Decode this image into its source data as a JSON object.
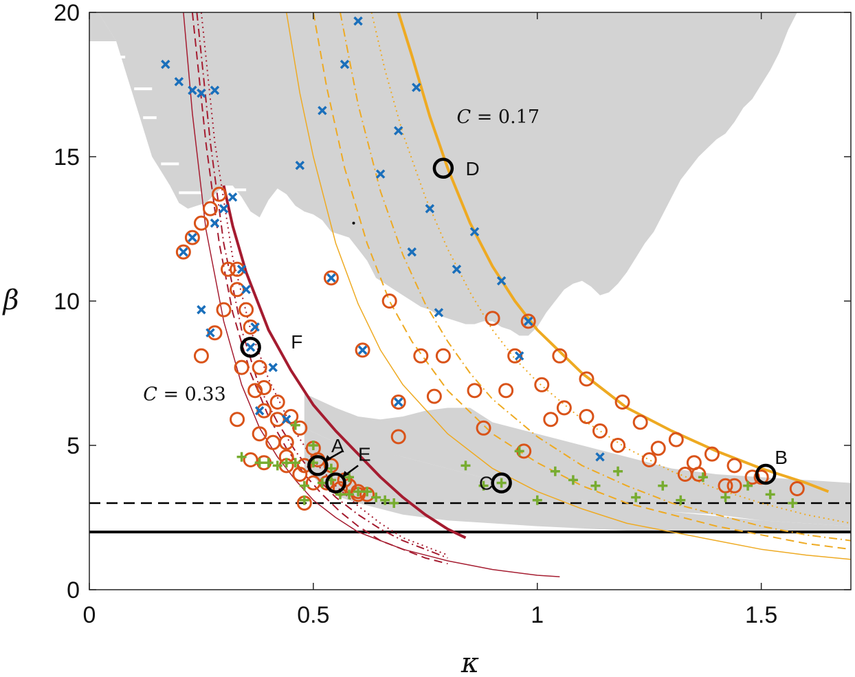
{
  "chart_data": {
    "type": "scatter",
    "title": "",
    "xlabel": "κ",
    "ylabel": "β",
    "xlim": [
      0,
      1.7
    ],
    "ylim": [
      0,
      20
    ],
    "xticks": [
      0,
      0.5,
      1,
      1.5
    ],
    "xtick_labels": [
      "0",
      "0.5",
      "1",
      "1.5"
    ],
    "yticks": [
      0,
      5,
      10,
      15,
      20
    ],
    "ytick_labels": [
      "0",
      "5",
      "10",
      "15",
      "20"
    ],
    "colors": {
      "region": "#d3d3d3",
      "red_curves": "#a51c30",
      "gold_curves": "#eeaa22",
      "cross": "#1a6fbb",
      "circle": "#d95319",
      "plus": "#77ac30",
      "black": "#000000"
    },
    "horizontal_lines": [
      {
        "name": "solid-threshold",
        "y": 2,
        "style": "solid"
      },
      {
        "name": "dashed-threshold",
        "y": 3,
        "style": "dashed"
      }
    ],
    "grey_region": {
      "upper_left": [
        [
          0.02,
          20
        ],
        [
          0.04,
          19.5
        ],
        [
          0.06,
          19
        ],
        [
          0.08,
          18
        ],
        [
          0.1,
          17
        ],
        [
          0.12,
          16
        ],
        [
          0.14,
          15
        ],
        [
          0.16,
          14.5
        ],
        [
          0.18,
          14
        ],
        [
          0.2,
          13.4
        ],
        [
          0.22,
          13.2
        ],
        [
          0.24,
          13.3
        ],
        [
          0.26,
          13.4
        ],
        [
          0.28,
          13.7
        ],
        [
          0.3,
          14
        ],
        [
          0.32,
          14
        ],
        [
          0.34,
          13.6
        ],
        [
          0.36,
          13.1
        ],
        [
          0.38,
          12.9
        ],
        [
          0.4,
          13.5
        ],
        [
          0.42,
          13.9
        ],
        [
          0.44,
          13.7
        ],
        [
          0.46,
          13.3
        ],
        [
          0.48,
          13.1
        ],
        [
          0.5,
          13
        ],
        [
          0.52,
          12.8
        ],
        [
          0.54,
          12.4
        ],
        [
          0.56,
          12.3
        ],
        [
          0.58,
          12.2
        ],
        [
          0.6,
          11.8
        ],
        [
          0.62,
          11.4
        ],
        [
          0.64,
          10.8
        ],
        [
          0.66,
          10.6
        ],
        [
          0.68,
          10.4
        ],
        [
          0.7,
          10.2
        ],
        [
          0.72,
          10
        ],
        [
          0.74,
          9.8
        ],
        [
          0.76,
          9.7
        ],
        [
          0.78,
          9.5
        ],
        [
          0.8,
          9.4
        ],
        [
          0.82,
          9.3
        ],
        [
          0.84,
          9.2
        ],
        [
          0.86,
          9.2
        ],
        [
          0.88,
          9.3
        ],
        [
          0.9,
          9.3
        ],
        [
          0.92,
          9.1
        ],
        [
          0.94,
          9
        ],
        [
          0.96,
          8.8
        ],
        [
          0.98,
          8.8
        ],
        [
          1,
          9.1
        ],
        [
          1.02,
          9.6
        ],
        [
          1.04,
          10
        ],
        [
          1.06,
          10.4
        ],
        [
          1.08,
          10.6
        ],
        [
          1.1,
          10.7
        ],
        [
          1.12,
          10.5
        ],
        [
          1.14,
          10.2
        ],
        [
          1.16,
          10.3
        ],
        [
          1.18,
          10.6
        ],
        [
          1.2,
          11
        ],
        [
          1.22,
          11.5
        ],
        [
          1.24,
          12
        ],
        [
          1.26,
          12.4
        ],
        [
          1.28,
          13
        ],
        [
          1.3,
          13.6
        ],
        [
          1.32,
          14.2
        ],
        [
          1.34,
          14.6
        ],
        [
          1.36,
          15
        ],
        [
          1.38,
          15.3
        ],
        [
          1.4,
          15.6
        ],
        [
          1.42,
          15.8
        ],
        [
          1.44,
          16.2
        ],
        [
          1.46,
          16.7
        ],
        [
          1.48,
          17
        ],
        [
          1.5,
          17.5
        ],
        [
          1.52,
          18
        ],
        [
          1.54,
          18.6
        ],
        [
          1.56,
          19.4
        ],
        [
          1.58,
          20
        ]
      ],
      "lower_band_top": [
        [
          0.48,
          6.8
        ],
        [
          0.55,
          6.3
        ],
        [
          0.6,
          6
        ],
        [
          0.65,
          5.9
        ],
        [
          0.7,
          6
        ],
        [
          0.75,
          6.2
        ],
        [
          0.8,
          6.3
        ],
        [
          0.85,
          6.3
        ],
        [
          0.9,
          5.8
        ],
        [
          1,
          5.4
        ],
        [
          1.1,
          5
        ],
        [
          1.2,
          4.6
        ],
        [
          1.3,
          4.2
        ],
        [
          1.4,
          4
        ],
        [
          1.5,
          3.9
        ],
        [
          1.6,
          3.8
        ],
        [
          1.7,
          3.7
        ]
      ],
      "lower_band_bottom": [
        [
          0.48,
          5.6
        ],
        [
          0.55,
          5.1
        ],
        [
          0.6,
          4.9
        ],
        [
          0.7,
          4.6
        ],
        [
          0.8,
          4.2
        ],
        [
          0.9,
          3.8
        ],
        [
          1,
          3.4
        ],
        [
          1.1,
          3.1
        ],
        [
          1.2,
          2.9
        ],
        [
          1.3,
          2.7
        ],
        [
          1.4,
          2.6
        ],
        [
          1.5,
          2.4
        ],
        [
          1.6,
          2.3
        ],
        [
          1.7,
          2.2
        ]
      ],
      "bottom_strip_top": [
        [
          0.48,
          4.2
        ],
        [
          0.52,
          3.6
        ],
        [
          0.56,
          3.2
        ],
        [
          0.6,
          3
        ]
      ],
      "right_islands_limit": [
        1.7,
        20
      ]
    },
    "curves": [
      {
        "name": "C = 0.33 bold",
        "color": "red",
        "style": "solid",
        "width": 4,
        "x": [
          0.3,
          0.32,
          0.35,
          0.4,
          0.45,
          0.5,
          0.55,
          0.6,
          0.65,
          0.7,
          0.75,
          0.8,
          0.84
        ],
        "y": [
          14,
          12.6,
          11,
          9,
          7.6,
          6.4,
          5.5,
          4.7,
          3.9,
          3.2,
          2.6,
          2.1,
          1.8
        ]
      },
      {
        "name": "C = 0.33 dotted",
        "color": "red",
        "style": "dotted",
        "width": 2,
        "x": [
          0.25,
          0.28,
          0.32,
          0.36,
          0.4,
          0.45,
          0.5,
          0.55,
          0.6,
          0.65,
          0.7,
          0.75,
          0.8
        ],
        "y": [
          20,
          15.5,
          11.5,
          9,
          7.3,
          5.7,
          4.5,
          3.6,
          2.9,
          2.3,
          1.8,
          1.5,
          1.2
        ]
      },
      {
        "name": "C = 0.33 dash-dot",
        "color": "red",
        "style": "dashdot",
        "width": 2,
        "x": [
          0.24,
          0.27,
          0.3,
          0.34,
          0.38,
          0.42,
          0.46,
          0.5,
          0.55,
          0.6,
          0.65,
          0.7,
          0.75,
          0.8
        ],
        "y": [
          20,
          15.5,
          12,
          9,
          7,
          5.8,
          4.8,
          4,
          3.2,
          2.6,
          2.1,
          1.7,
          1.4,
          1.1
        ]
      },
      {
        "name": "C = 0.33 dashed",
        "color": "red",
        "style": "dashed",
        "width": 2,
        "x": [
          0.23,
          0.26,
          0.29,
          0.32,
          0.36,
          0.4,
          0.44,
          0.48,
          0.52,
          0.56,
          0.6,
          0.65,
          0.7,
          0.75,
          0.8
        ],
        "y": [
          20,
          15.5,
          12,
          9.6,
          7.5,
          6,
          4.9,
          4,
          3.3,
          2.7,
          2.2,
          1.7,
          1.4,
          1.1,
          0.9
        ]
      },
      {
        "name": "C = 0.33 thin",
        "color": "red",
        "style": "solid",
        "width": 1.5,
        "x": [
          0.21,
          0.23,
          0.26,
          0.3,
          0.34,
          0.38,
          0.42,
          0.46,
          0.5,
          0.55,
          0.6,
          0.7,
          0.8,
          0.9,
          1.0,
          1.05
        ],
        "y": [
          20,
          16.5,
          12.5,
          9.3,
          7.1,
          5.6,
          4.6,
          3.8,
          3.1,
          2.5,
          2,
          1.4,
          1,
          0.7,
          0.5,
          0.45
        ]
      },
      {
        "name": "C = 0.17 bold",
        "color": "gold",
        "style": "solid",
        "width": 4,
        "x": [
          0.69,
          0.72,
          0.76,
          0.8,
          0.85,
          0.9,
          0.95,
          1.0,
          1.1,
          1.2,
          1.3,
          1.4,
          1.5,
          1.6,
          1.65
        ],
        "y": [
          20,
          18.5,
          16.4,
          14.6,
          12.7,
          11.2,
          10,
          9,
          7.5,
          6.3,
          5.5,
          4.8,
          4.2,
          3.7,
          3.4
        ]
      },
      {
        "name": "C = 0.17 dotted",
        "color": "gold",
        "style": "dotted",
        "width": 2,
        "x": [
          0.63,
          0.66,
          0.7,
          0.75,
          0.8,
          0.85,
          0.9,
          0.95,
          1.0,
          1.1,
          1.2,
          1.3,
          1.4,
          1.5,
          1.6,
          1.7
        ],
        "y": [
          20,
          18,
          15.8,
          13.6,
          11.8,
          10.3,
          9,
          8,
          7.2,
          5.9,
          4.9,
          4.1,
          3.5,
          3,
          2.6,
          2.3
        ]
      },
      {
        "name": "C = 0.17 dash-dot",
        "color": "gold",
        "style": "dashdot",
        "width": 2,
        "x": [
          0.56,
          0.6,
          0.65,
          0.7,
          0.75,
          0.8,
          0.85,
          0.9,
          1.0,
          1.1,
          1.2,
          1.3,
          1.4,
          1.5,
          1.6,
          1.7
        ],
        "y": [
          20,
          16.8,
          13.8,
          11.6,
          9.9,
          8.6,
          7.5,
          6.6,
          5.3,
          4.3,
          3.6,
          3,
          2.6,
          2.2,
          1.9,
          1.7
        ]
      },
      {
        "name": "C = 0.17 dashed",
        "color": "gold",
        "style": "dashed",
        "width": 2,
        "x": [
          0.5,
          0.53,
          0.57,
          0.62,
          0.67,
          0.72,
          0.8,
          0.9,
          1.0,
          1.1,
          1.2,
          1.3,
          1.4,
          1.5,
          1.6,
          1.7
        ],
        "y": [
          20,
          17.4,
          14.6,
          12,
          10,
          8.6,
          6.9,
          5.4,
          4.4,
          3.6,
          3,
          2.6,
          2.2,
          1.9,
          1.6,
          1.4
        ]
      },
      {
        "name": "C = 0.17 thin",
        "color": "gold",
        "style": "solid",
        "width": 1.5,
        "x": [
          0.44,
          0.47,
          0.5,
          0.55,
          0.6,
          0.65,
          0.7,
          0.8,
          0.9,
          1.0,
          1.1,
          1.2,
          1.3,
          1.4,
          1.5,
          1.6,
          1.7
        ],
        "y": [
          20,
          17.2,
          15,
          12,
          9.9,
          8.3,
          7.1,
          5.4,
          4.2,
          3.4,
          2.8,
          2.3,
          2,
          1.7,
          1.4,
          1.2,
          1.05
        ]
      }
    ],
    "series": [
      {
        "name": "crosses",
        "marker": "x",
        "x": [
          0.17,
          0.2,
          0.23,
          0.25,
          0.28,
          0.6,
          0.57,
          0.52,
          0.73,
          0.69,
          0.47,
          0.65,
          0.76,
          0.86,
          0.72,
          0.82,
          0.92,
          0.78,
          0.98,
          0.96,
          1.14,
          0.32,
          0.34,
          0.37,
          0.41,
          0.38,
          0.44,
          0.3,
          0.28,
          0.35,
          0.27,
          0.25,
          0.23,
          0.21,
          0.36,
          0.54,
          0.61,
          0.69
        ],
        "y": [
          18.2,
          17.6,
          17.3,
          17.2,
          17.3,
          19.7,
          18.2,
          16.6,
          17.4,
          15.9,
          14.7,
          14.4,
          13.2,
          12.4,
          11.7,
          11.1,
          10.7,
          9.6,
          9.3,
          8.1,
          4.6,
          13.6,
          11.1,
          9.1,
          7.7,
          6.2,
          5.9,
          13.2,
          12.7,
          10.4,
          8.9,
          9.7,
          12.2,
          11.7,
          8.4,
          10.8,
          8.3,
          6.5
        ]
      },
      {
        "name": "circles",
        "marker": "o",
        "x": [
          0.21,
          0.23,
          0.25,
          0.27,
          0.29,
          0.31,
          0.33,
          0.35,
          0.25,
          0.28,
          0.3,
          0.33,
          0.36,
          0.38,
          0.39,
          0.42,
          0.45,
          0.34,
          0.37,
          0.39,
          0.42,
          0.44,
          0.47,
          0.5,
          0.33,
          0.38,
          0.41,
          0.44,
          0.48,
          0.51,
          0.54,
          0.57,
          0.6,
          0.36,
          0.39,
          0.44,
          0.47,
          0.5,
          0.53,
          0.56,
          0.6,
          0.62,
          0.54,
          0.61,
          0.67,
          0.69,
          0.74,
          0.77,
          0.69,
          0.79,
          0.86,
          0.88,
          0.9,
          0.93,
          0.97,
          0.95,
          1.01,
          1.03,
          1.06,
          1.11,
          1.14,
          1.19,
          1.23,
          1.27,
          1.31,
          1.35,
          1.39,
          1.44,
          1.48,
          0.98,
          1.05,
          1.11,
          1.18,
          1.25,
          1.33,
          1.42,
          1.5,
          1.58,
          1.36,
          1.44,
          0.48,
          0.58
        ],
        "y": [
          11.7,
          12.2,
          12.7,
          13.2,
          13.7,
          11.1,
          10.4,
          9.7,
          8.1,
          8.9,
          9.7,
          11.1,
          9.1,
          7.7,
          7.0,
          6.5,
          6.0,
          7.7,
          6.9,
          6.2,
          5.9,
          5.1,
          5.6,
          4.9,
          5.9,
          5.4,
          5.1,
          4.6,
          4.3,
          4.5,
          4.3,
          3.8,
          3.4,
          4.5,
          4.4,
          4.3,
          4.0,
          3.7,
          3.7,
          3.5,
          3.3,
          3.3,
          10.8,
          8.3,
          10.0,
          6.5,
          8.1,
          6.7,
          5.3,
          8.1,
          6.9,
          5.6,
          9.4,
          6.9,
          4.8,
          8.1,
          7.1,
          5.9,
          6.3,
          7.3,
          5.5,
          6.5,
          5.8,
          4.9,
          5.2,
          4.4,
          4.7,
          4.3,
          3.9,
          9.3,
          8.1,
          6.0,
          5.0,
          4.5,
          4.0,
          3.6,
          3.9,
          3.5,
          4.0,
          3.6,
          3.0,
          3.6
        ]
      },
      {
        "name": "pluses",
        "marker": "+",
        "x": [
          0.34,
          0.38,
          0.42,
          0.46,
          0.5,
          0.54,
          0.58,
          0.62,
          0.66,
          0.4,
          0.44,
          0.48,
          0.52,
          0.56,
          0.6,
          0.64,
          0.68,
          0.46,
          0.5,
          0.54,
          0.58,
          0.84,
          0.88,
          0.92,
          0.96,
          1.0,
          1.04,
          1.08,
          1.13,
          1.18,
          1.22,
          1.28,
          1.32,
          1.37,
          1.42,
          1.47,
          1.52,
          1.57,
          0.48
        ],
        "y": [
          4.6,
          4.4,
          4.3,
          4.4,
          4.4,
          4.2,
          3.9,
          3.4,
          3.1,
          4.4,
          4.4,
          3.6,
          3.7,
          3.3,
          3.4,
          3.2,
          3.0,
          5.7,
          5.0,
          3.8,
          3.3,
          4.3,
          3.6,
          3.7,
          4.8,
          3.1,
          4.1,
          3.8,
          3.6,
          4.1,
          3.2,
          3.6,
          3.1,
          3.9,
          3.2,
          3.6,
          3.3,
          3.0,
          3.1
        ]
      },
      {
        "name": "highlighted",
        "marker": "bold-o",
        "x": [
          0.51,
          0.55,
          1.51,
          0.92,
          0.79,
          0.36
        ],
        "y": [
          4.3,
          3.7,
          4.0,
          3.7,
          14.6,
          8.4
        ],
        "labels": [
          "A",
          "E",
          "B",
          "C",
          "D",
          "F"
        ]
      }
    ],
    "annotations": [
      {
        "label": "A",
        "x": 0.54,
        "y": 5.0
      },
      {
        "label": "E",
        "x": 0.6,
        "y": 4.7
      },
      {
        "label": "B",
        "x": 1.53,
        "y": 4.6
      },
      {
        "label": "C",
        "x": 0.87,
        "y": 3.7
      },
      {
        "label": "D",
        "x": 0.84,
        "y": 14.6
      },
      {
        "label": "F",
        "x": 0.45,
        "y": 8.6
      },
      {
        "label": "C = 0.17",
        "x": 0.82,
        "y": 16.4
      },
      {
        "label": "C = 0.33",
        "x": 0.12,
        "y": 6.8
      }
    ],
    "legend": "none"
  }
}
